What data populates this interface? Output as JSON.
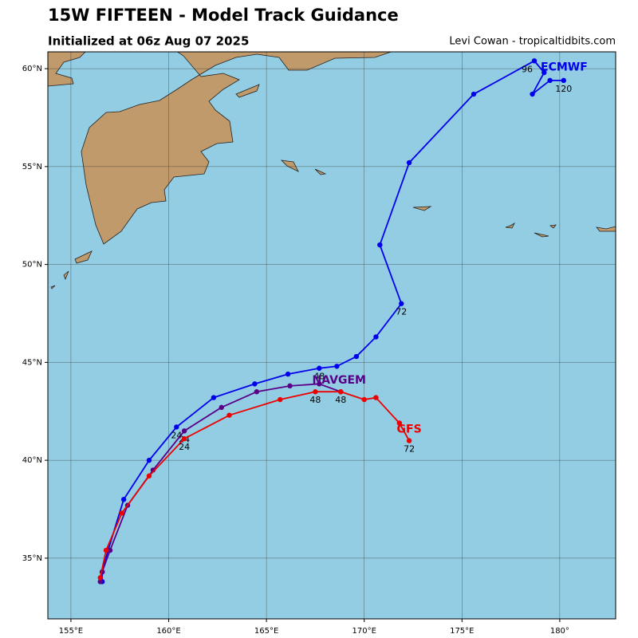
{
  "chart_data": {
    "type": "track",
    "title": "15W FIFTEEN - Model Track Guidance",
    "subtitle": "Initialized at 06z Aug 07 2025",
    "credit": "Levi Cowan - tropicaltidbits.com",
    "xlim": [
      153.82,
      182.86
    ],
    "ylim": [
      31.9,
      60.86
    ],
    "xticks": [
      {
        "value": 155,
        "label": "155°E"
      },
      {
        "value": 160,
        "label": "160°E"
      },
      {
        "value": 165,
        "label": "165°E"
      },
      {
        "value": 170,
        "label": "170°E"
      },
      {
        "value": 175,
        "label": "175°E"
      },
      {
        "value": 180,
        "label": "180°"
      }
    ],
    "yticks": [
      {
        "value": 35,
        "label": "35°N"
      },
      {
        "value": 40,
        "label": "40°N"
      },
      {
        "value": 45,
        "label": "45°N"
      },
      {
        "value": 50,
        "label": "50°N"
      },
      {
        "value": 55,
        "label": "55°N"
      },
      {
        "value": 60,
        "label": "60°N"
      }
    ],
    "grid": true,
    "series": [
      {
        "name": "ECMWF",
        "color": "#0000ee",
        "x": [
          156.6,
          156.6,
          156.9,
          157.7,
          159.0,
          160.4,
          162.3,
          164.4,
          166.1,
          167.7,
          168.6,
          169.6,
          170.6,
          171.9,
          170.8,
          172.3,
          175.6,
          178.7,
          179.2,
          178.6,
          179.5,
          180.2
        ],
        "y": [
          33.8,
          34.3,
          35.4,
          38.0,
          40.0,
          41.7,
          43.2,
          43.9,
          44.4,
          44.7,
          44.8,
          45.3,
          46.3,
          48.0,
          51.0,
          55.2,
          58.7,
          60.4,
          59.8,
          58.7,
          59.4,
          59.4
        ],
        "hours": [
          null,
          null,
          null,
          null,
          null,
          24,
          null,
          null,
          null,
          48,
          null,
          null,
          null,
          72,
          null,
          null,
          null,
          96,
          null,
          null,
          null,
          120
        ]
      },
      {
        "name": "NAVGEM",
        "color": "#5a0088",
        "x": [
          156.5,
          156.6,
          157.0,
          157.9,
          159.2,
          160.8,
          162.7,
          164.5,
          166.2,
          167.7,
          168.8
        ],
        "y": [
          33.8,
          34.3,
          35.4,
          37.7,
          39.5,
          41.5,
          42.7,
          43.5,
          43.8,
          43.9,
          43.5
        ],
        "hours": [
          null,
          null,
          null,
          null,
          null,
          24,
          null,
          null,
          null,
          null,
          48
        ]
      },
      {
        "name": "GFS",
        "color": "#ee0000",
        "x": [
          156.5,
          156.8,
          157.6,
          159.0,
          160.8,
          163.1,
          165.7,
          167.5,
          168.8,
          170.0,
          170.6,
          171.8,
          172.3
        ],
        "y": [
          34.0,
          35.4,
          37.3,
          39.2,
          41.1,
          42.3,
          43.1,
          43.5,
          43.5,
          43.1,
          43.2,
          41.9,
          41.0
        ],
        "hours": [
          null,
          null,
          null,
          null,
          24,
          null,
          null,
          48,
          null,
          null,
          null,
          null,
          72
        ]
      }
    ]
  }
}
